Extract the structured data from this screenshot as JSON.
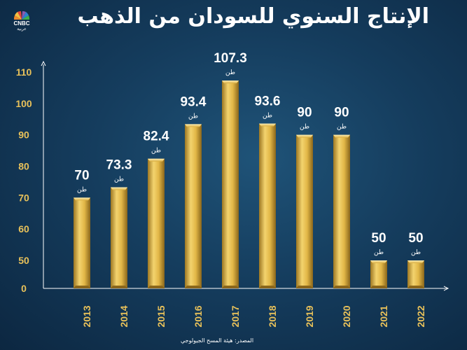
{
  "header": {
    "title": "الإنتاج السنوي للسودان من الذهب",
    "logo_text": "CNBC",
    "logo_sub": "عربية"
  },
  "footer": {
    "source": "المصدر: هيئة المسح الجيولوجي"
  },
  "colors": {
    "background": "#153d5e",
    "bar_gold": "#e6bf4f",
    "tick_label": "#e8c15a",
    "axis": "#ffffff"
  },
  "chart_data": {
    "type": "bar",
    "title": "الإنتاج السنوي للسودان من الذهب",
    "categories": [
      "2013",
      "2014",
      "2015",
      "2016",
      "2017",
      "2018",
      "2019",
      "2020",
      "2021",
      "2022"
    ],
    "values": [
      70,
      73.3,
      82.4,
      93.4,
      107.3,
      93.6,
      90,
      90,
      50,
      50
    ],
    "value_labels": [
      "70",
      "73.3",
      "82.4",
      "93.4",
      "107.3",
      "93.6",
      "90",
      "90",
      "50",
      "50"
    ],
    "unit": "طن",
    "yticks": [
      "0",
      "50",
      "60",
      "70",
      "80",
      "90",
      "100",
      "110"
    ],
    "ylim": [
      0,
      110
    ],
    "grid": false,
    "legend": "none"
  }
}
